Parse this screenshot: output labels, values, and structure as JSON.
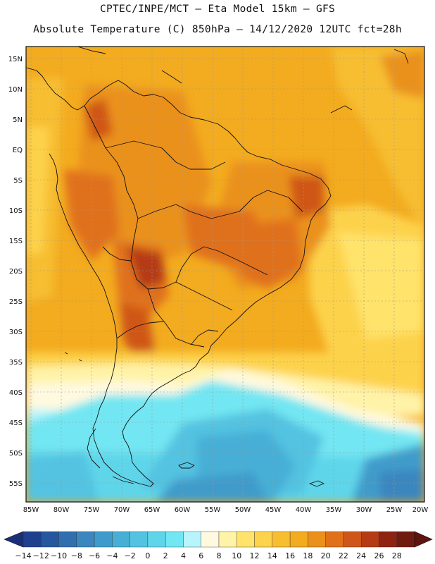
{
  "header": {
    "line1": "CPTEC/INPE/MCT –  Eta Model 15km – GFS",
    "line2": "Absolute Temperature (C) 850hPa – 14/12/2020 12UTC fct=28h"
  },
  "axes": {
    "lat_labels": [
      "15N",
      "10N",
      "5N",
      "EQ",
      "5S",
      "10S",
      "15S",
      "20S",
      "25S",
      "30S",
      "35S",
      "40S",
      "45S",
      "50S",
      "55S"
    ],
    "lon_labels": [
      "85W",
      "80W",
      "75W",
      "70W",
      "65W",
      "60W",
      "55W",
      "50W",
      "45W",
      "40W",
      "35W",
      "30W",
      "25W",
      "20W"
    ]
  },
  "colorbar": {
    "labels": [
      "-14",
      "-12",
      "-10",
      "-8",
      "-6",
      "-4",
      "-2",
      "0",
      "2",
      "4",
      "6",
      "8",
      "10",
      "12",
      "14",
      "16",
      "18",
      "20",
      "22",
      "24",
      "26",
      "28"
    ],
    "colors": [
      "#1f3f8f",
      "#24579e",
      "#2f6fb0",
      "#3b86bf",
      "#3f9bcb",
      "#47afd6",
      "#53c3e1",
      "#5fd5ea",
      "#72e6f2",
      "#b8f4fb",
      "#fff9e0",
      "#fff3a8",
      "#ffe36a",
      "#fdd24c",
      "#f7be31",
      "#f3ab1f",
      "#ea911b",
      "#e0711a",
      "#cf5618",
      "#b53b14",
      "#8e2312",
      "#701b10"
    ]
  },
  "chart_data": {
    "type": "heatmap",
    "variable": "Absolute Temperature (C) 850hPa",
    "model": "Eta Model 15km – GFS",
    "run": "14/12/2020 12UTC",
    "forecast": "fct=28h",
    "lon_range": [
      -85,
      -20
    ],
    "lat_range": [
      -58,
      17
    ],
    "color_scale": [
      -14,
      28
    ]
  }
}
